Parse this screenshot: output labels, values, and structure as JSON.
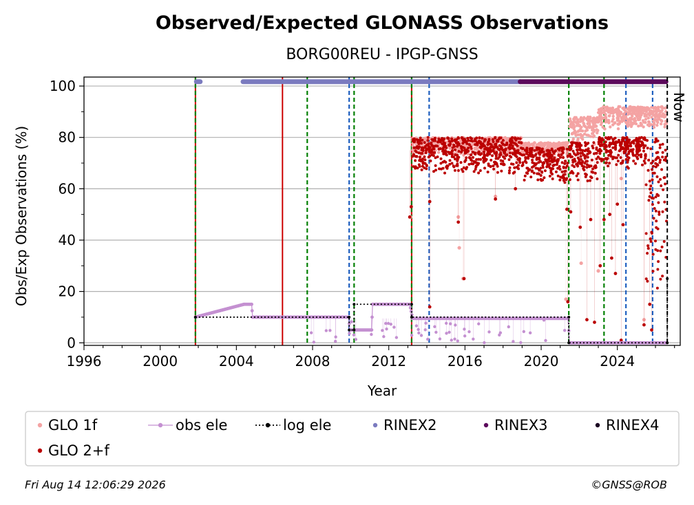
{
  "chart_data": {
    "type": "scatter",
    "title": "Observed/Expected GLONASS Observations",
    "subtitle": "BORG00REU - IPGP-GNSS",
    "xlabel": "Year",
    "ylabel": "Obs/Exp Observations (%)",
    "xlim": [
      1996,
      2027.3
    ],
    "ylim": [
      -1,
      103.5
    ],
    "xticks": [
      "1996",
      "2000",
      "2004",
      "2008",
      "2012",
      "2016",
      "2020",
      "2024"
    ],
    "xtick_values": [
      1996,
      2000,
      2004,
      2008,
      2012,
      2016,
      2020,
      2024
    ],
    "yticks": [
      "0",
      "20",
      "40",
      "60",
      "80",
      "100"
    ],
    "ytick_values": [
      0,
      20,
      40,
      60,
      80,
      100
    ],
    "grid": "horizontal",
    "now_label": "Now",
    "now_x": 2026.62,
    "legend_position": "bottom",
    "legend": [
      {
        "key": "glo1f",
        "label": "GLO 1f",
        "color": "#f4a3a3",
        "marker": "dot"
      },
      {
        "key": "obsele",
        "label": "obs ele",
        "color": "#c490d1",
        "marker": "dot-line"
      },
      {
        "key": "logele",
        "label": "log ele",
        "color": "#000000",
        "marker": "dot-dotted"
      },
      {
        "key": "rinex2",
        "label": "RINEX2",
        "color": "#7b7bbf",
        "marker": "dot"
      },
      {
        "key": "rinex3",
        "label": "RINEX3",
        "color": "#5c0a5c",
        "marker": "dot"
      },
      {
        "key": "rinex4",
        "label": "RINEX4",
        "color": "#1a0021",
        "marker": "dot"
      },
      {
        "key": "glo2f",
        "label": "GLO 2+f",
        "color": "#bb0000",
        "marker": "dot"
      }
    ],
    "vertical_lines": [
      {
        "x": 2001.85,
        "color": "#cc0000",
        "style": "solid"
      },
      {
        "x": 2001.85,
        "color": "#008000",
        "style": "dashed"
      },
      {
        "x": 2006.42,
        "color": "#cc0000",
        "style": "solid"
      },
      {
        "x": 2007.72,
        "color": "#008000",
        "style": "dashed"
      },
      {
        "x": 2009.92,
        "color": "#1f5fbf",
        "style": "dashed"
      },
      {
        "x": 2010.18,
        "color": "#008000",
        "style": "dashed"
      },
      {
        "x": 2013.2,
        "color": "#cc0000",
        "style": "solid"
      },
      {
        "x": 2013.2,
        "color": "#008000",
        "style": "dashed"
      },
      {
        "x": 2014.12,
        "color": "#1f5fbf",
        "style": "dashed"
      },
      {
        "x": 2021.45,
        "color": "#008000",
        "style": "dashed"
      },
      {
        "x": 2023.3,
        "color": "#008000",
        "style": "dashed"
      },
      {
        "x": 2024.45,
        "color": "#1f5fbf",
        "style": "dashed"
      },
      {
        "x": 2025.85,
        "color": "#1f5fbf",
        "style": "dashed"
      }
    ],
    "series": [
      {
        "name": "log ele",
        "type": "step",
        "x": [
          2001.85,
          2009.92,
          2009.92,
          2010.18,
          2010.18,
          2013.2,
          2013.2,
          2021.45,
          2021.45,
          2026.62,
          2026.62
        ],
        "y": [
          10,
          10,
          5,
          5,
          15,
          15,
          10,
          10,
          0,
          0,
          25
        ]
      },
      {
        "name": "obs ele",
        "type": "line",
        "x": [
          2001.85,
          2004.4,
          2004.8,
          2004.85,
          2009.9,
          2009.95,
          2010.2,
          2011.1,
          2011.15,
          2013.1,
          2013.25,
          2018.9,
          2021.4,
          2021.5,
          2026.6
        ],
        "y": [
          10,
          15,
          15,
          10,
          10,
          5,
          5,
          5,
          15,
          15,
          9.5,
          9.5,
          9.5,
          0,
          0
        ]
      },
      {
        "name": "RINEX2",
        "type": "band",
        "x": [
          2001.9,
          2002.1,
          2004.35,
          2018.9
        ],
        "y": 101.7
      },
      {
        "name": "RINEX3",
        "type": "band",
        "x": [
          2018.9,
          2026.55
        ],
        "y": 101.7
      },
      {
        "name": "GLO 1f",
        "type": "scatter",
        "segments": [
          {
            "x0": 2013.25,
            "x1": 2019.0,
            "lo": 73,
            "hi": 80
          },
          {
            "x0": 2019.0,
            "x1": 2021.4,
            "lo": 72,
            "hi": 78
          },
          {
            "x0": 2021.5,
            "x1": 2023.0,
            "lo": 77,
            "hi": 88
          },
          {
            "x0": 2023.0,
            "x1": 2026.6,
            "lo": 83,
            "hi": 92
          }
        ],
        "outliers": [
          [
            2013.15,
            49
          ],
          [
            2015.65,
            49
          ],
          [
            2015.7,
            37
          ],
          [
            2015.9,
            25
          ],
          [
            2017.6,
            57
          ],
          [
            2021.3,
            17
          ],
          [
            2022.1,
            31
          ],
          [
            2023.0,
            28
          ],
          [
            2024.2,
            64
          ],
          [
            2025.4,
            9
          ]
        ]
      },
      {
        "name": "GLO 2+f",
        "type": "scatter",
        "segments": [
          {
            "x0": 2013.25,
            "x1": 2019.0,
            "lo": 66,
            "hi": 80
          },
          {
            "x0": 2019.0,
            "x1": 2021.4,
            "lo": 62,
            "hi": 76
          },
          {
            "x0": 2021.5,
            "x1": 2023.0,
            "lo": 62,
            "hi": 78
          },
          {
            "x0": 2023.0,
            "x1": 2025.5,
            "lo": 68,
            "hi": 80
          },
          {
            "x0": 2025.5,
            "x1": 2026.6,
            "lo": 20,
            "hi": 80
          }
        ],
        "outliers": [
          [
            2013.1,
            49
          ],
          [
            2013.18,
            53
          ],
          [
            2014.15,
            55
          ],
          [
            2014.15,
            14
          ],
          [
            2015.65,
            47
          ],
          [
            2015.95,
            25
          ],
          [
            2017.6,
            56
          ],
          [
            2018.65,
            60
          ],
          [
            2021.35,
            52
          ],
          [
            2021.4,
            16
          ],
          [
            2021.55,
            51
          ],
          [
            2022.05,
            45
          ],
          [
            2022.4,
            9
          ],
          [
            2022.6,
            48
          ],
          [
            2022.8,
            8
          ],
          [
            2023.1,
            30
          ],
          [
            2023.3,
            48
          ],
          [
            2023.6,
            50
          ],
          [
            2023.7,
            33
          ],
          [
            2023.9,
            27
          ],
          [
            2024.0,
            54
          ],
          [
            2024.2,
            1
          ],
          [
            2024.3,
            46
          ],
          [
            2025.4,
            7
          ],
          [
            2025.7,
            15
          ],
          [
            2025.8,
            5
          ]
        ]
      }
    ]
  },
  "footer": {
    "timestamp": "Fri Aug 14 12:06:29 2026",
    "credit": "©GNSS@ROB"
  }
}
